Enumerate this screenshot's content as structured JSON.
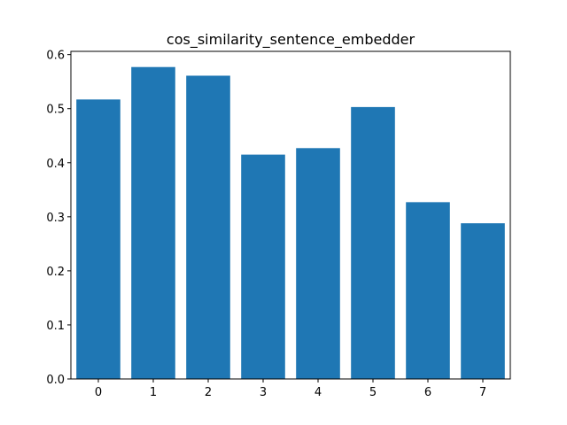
{
  "chart_data": {
    "type": "bar",
    "title": "cos_similarity_sentence_embedder",
    "xlabel": "",
    "ylabel": "",
    "categories": [
      "0",
      "1",
      "2",
      "3",
      "4",
      "5",
      "6",
      "7"
    ],
    "values": [
      0.517,
      0.577,
      0.561,
      0.415,
      0.427,
      0.503,
      0.327,
      0.288
    ],
    "xlim": [
      -0.5,
      7.5
    ],
    "ylim": [
      0,
      0.606
    ],
    "yticks": [
      0.0,
      0.1,
      0.2,
      0.3,
      0.4,
      0.5,
      0.6
    ],
    "ytick_labels": [
      "0.0",
      "0.1",
      "0.2",
      "0.3",
      "0.4",
      "0.5",
      "0.6"
    ],
    "bar_color": "#1f77b4",
    "grid": false,
    "legend": "none"
  }
}
